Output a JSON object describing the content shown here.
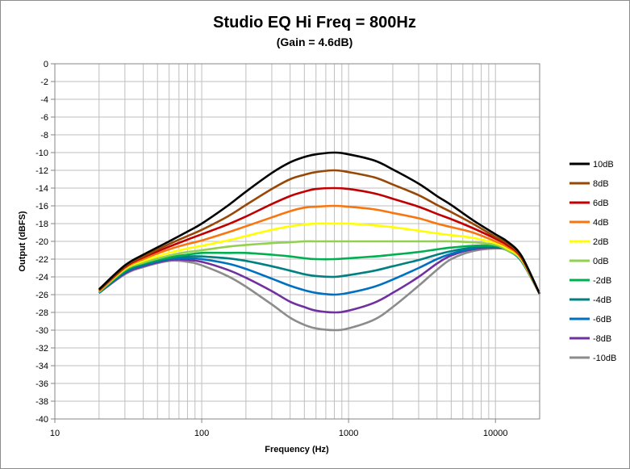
{
  "chart_data": {
    "type": "line",
    "title": "Studio EQ Hi Freq = 800Hz",
    "subtitle": "(Gain = 4.6dB)",
    "xlabel": "Frequency (Hz)",
    "ylabel": "Output (dBFS)",
    "x_scale": "log",
    "xlim": [
      10,
      20000
    ],
    "ylim": [
      -40,
      0
    ],
    "x_ticks": [
      "10",
      "100",
      "1000",
      "10000"
    ],
    "y_ticks": [
      "0",
      "-2",
      "-4",
      "-6",
      "-8",
      "-10",
      "-12",
      "-14",
      "-16",
      "-18",
      "-20",
      "-22",
      "-24",
      "-26",
      "-28",
      "-30",
      "-32",
      "-34",
      "-36",
      "-38",
      "-40"
    ],
    "grid": true,
    "legend_position": "right",
    "x": [
      20,
      30,
      40,
      60,
      80,
      100,
      150,
      200,
      300,
      400,
      500,
      600,
      800,
      1000,
      1500,
      2000,
      3000,
      4000,
      5000,
      7000,
      10000,
      12000,
      15000,
      20000
    ],
    "series": [
      {
        "name": "10dB",
        "color": "#000000",
        "values": [
          -25.4,
          -22.7,
          -21.5,
          -20.0,
          -18.9,
          -18.0,
          -16.0,
          -14.4,
          -12.3,
          -11.1,
          -10.5,
          -10.2,
          -10.0,
          -10.2,
          -10.9,
          -11.9,
          -13.5,
          -14.9,
          -15.9,
          -17.6,
          -19.2,
          -20.0,
          -21.6,
          -25.9
        ]
      },
      {
        "name": "8dB",
        "color": "#974806",
        "values": [
          -25.5,
          -22.8,
          -21.7,
          -20.3,
          -19.4,
          -18.7,
          -17.2,
          -15.9,
          -14.1,
          -13.0,
          -12.5,
          -12.2,
          -12.0,
          -12.2,
          -12.8,
          -13.6,
          -14.8,
          -15.9,
          -16.7,
          -18.0,
          -19.5,
          -20.2,
          -21.7,
          -25.9
        ]
      },
      {
        "name": "6dB",
        "color": "#c00000",
        "values": [
          -25.5,
          -22.9,
          -21.8,
          -20.6,
          -19.8,
          -19.2,
          -18.1,
          -17.2,
          -15.8,
          -14.9,
          -14.4,
          -14.1,
          -14.0,
          -14.1,
          -14.6,
          -15.2,
          -16.1,
          -16.9,
          -17.5,
          -18.5,
          -19.7,
          -20.4,
          -21.8,
          -25.9
        ]
      },
      {
        "name": "4dB",
        "color": "#f7760f",
        "values": [
          -25.6,
          -23.0,
          -22.0,
          -20.9,
          -20.3,
          -19.9,
          -19.0,
          -18.3,
          -17.3,
          -16.6,
          -16.2,
          -16.1,
          -16.0,
          -16.1,
          -16.4,
          -16.8,
          -17.4,
          -18.0,
          -18.4,
          -19.0,
          -20.0,
          -20.6,
          -21.9,
          -25.9
        ]
      },
      {
        "name": "2dB",
        "color": "#ffff00",
        "values": [
          -25.6,
          -23.1,
          -22.2,
          -21.3,
          -20.8,
          -20.5,
          -19.9,
          -19.4,
          -18.7,
          -18.3,
          -18.1,
          -18.0,
          -18.0,
          -18.0,
          -18.2,
          -18.4,
          -18.8,
          -19.1,
          -19.3,
          -19.6,
          -20.2,
          -20.8,
          -22.0,
          -25.9
        ]
      },
      {
        "name": "0dB",
        "color": "#92d050",
        "values": [
          -25.7,
          -23.2,
          -22.4,
          -21.6,
          -21.2,
          -21.0,
          -20.6,
          -20.4,
          -20.2,
          -20.1,
          -20.0,
          -20.0,
          -20.0,
          -20.0,
          -20.0,
          -20.0,
          -20.0,
          -20.0,
          -20.0,
          -20.1,
          -20.4,
          -21.0,
          -22.1,
          -25.9
        ]
      },
      {
        "name": "-2dB",
        "color": "#00b050",
        "values": [
          -25.7,
          -23.3,
          -22.5,
          -21.8,
          -21.5,
          -21.3,
          -21.3,
          -21.3,
          -21.5,
          -21.7,
          -21.9,
          -22.0,
          -22.0,
          -21.9,
          -21.7,
          -21.5,
          -21.2,
          -20.9,
          -20.7,
          -20.5,
          -20.5,
          -21.0,
          -22.1,
          -25.9
        ]
      },
      {
        "name": "-4dB",
        "color": "#008080",
        "values": [
          -25.8,
          -23.4,
          -22.6,
          -21.9,
          -21.7,
          -21.7,
          -21.9,
          -22.2,
          -22.8,
          -23.3,
          -23.7,
          -23.9,
          -24.0,
          -23.8,
          -23.3,
          -22.8,
          -22.1,
          -21.5,
          -21.1,
          -20.7,
          -20.6,
          -21.0,
          -22.2,
          -25.9
        ]
      },
      {
        "name": "-6dB",
        "color": "#0070c0",
        "values": [
          -25.8,
          -23.5,
          -22.7,
          -22.0,
          -21.9,
          -22.0,
          -22.5,
          -23.1,
          -24.2,
          -25.0,
          -25.5,
          -25.8,
          -26.0,
          -25.8,
          -25.1,
          -24.3,
          -23.0,
          -22.0,
          -21.4,
          -20.8,
          -20.6,
          -21.0,
          -22.2,
          -25.9
        ]
      },
      {
        "name": "-8dB",
        "color": "#7030a0",
        "values": [
          -25.8,
          -23.6,
          -22.8,
          -22.1,
          -22.1,
          -22.3,
          -23.2,
          -24.1,
          -25.6,
          -26.8,
          -27.4,
          -27.8,
          -28.0,
          -27.8,
          -26.9,
          -25.8,
          -24.0,
          -22.5,
          -21.6,
          -20.9,
          -20.7,
          -21.0,
          -22.2,
          -25.9
        ]
      },
      {
        "name": "-10dB",
        "color": "#8c8c8c",
        "values": [
          -25.8,
          -23.7,
          -22.9,
          -22.2,
          -22.3,
          -22.7,
          -23.9,
          -25.1,
          -27.1,
          -28.6,
          -29.4,
          -29.8,
          -30.0,
          -29.8,
          -28.8,
          -27.4,
          -25.0,
          -23.2,
          -22.0,
          -21.1,
          -20.8,
          -21.0,
          -22.2,
          -25.9
        ]
      }
    ]
  }
}
